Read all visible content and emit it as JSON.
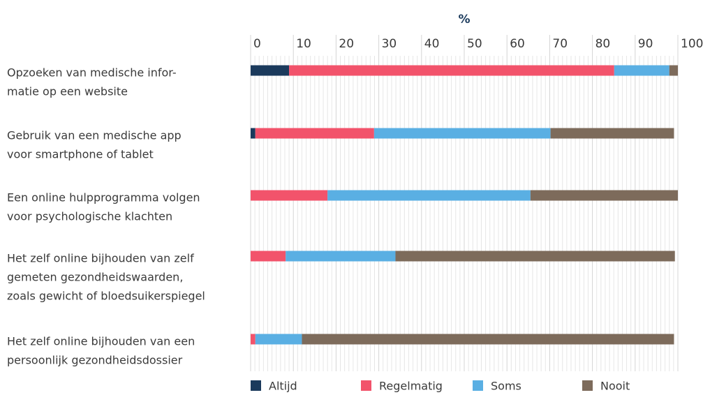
{
  "chart_data": {
    "type": "stacked_barh",
    "xlabel": "%",
    "categories": [
      [
        "Opzoeken van medische infor-",
        "matie op een website"
      ],
      [
        "Gebruik van een medische app",
        "voor smartphone of tablet"
      ],
      [
        "Een online hulpprogramma volgen",
        "voor psychologische klachten"
      ],
      [
        "Het zelf online bijhouden van zelf",
        "gemeten gezondheidswaarden,",
        "zoals gewicht of bloedsuikerspiegel"
      ],
      [
        "Het zelf online bijhouden van een",
        "persoonlijk gezondheidsdossier"
      ]
    ],
    "series": [
      {
        "name": "Altijd",
        "color": "#1b3a5c",
        "values": [
          9.0,
          1.1,
          0,
          0,
          0
        ]
      },
      {
        "name": "Regelmatig",
        "color": "#f2536b",
        "values": [
          76.1,
          27.8,
          18.0,
          8.2,
          1.1
        ]
      },
      {
        "name": "Soms",
        "color": "#5aafe3",
        "values": [
          12.9,
          41.3,
          47.5,
          25.7,
          10.9
        ]
      },
      {
        "name": "Nooit",
        "color": "#7d6b5b",
        "values": [
          2.0,
          28.9,
          34.5,
          65.4,
          87.1
        ]
      }
    ],
    "xlim": [
      0,
      100
    ],
    "xticks": [
      0,
      10,
      20,
      30,
      40,
      50,
      60,
      70,
      80,
      90,
      100
    ],
    "grid": true,
    "legend": "bottom"
  }
}
